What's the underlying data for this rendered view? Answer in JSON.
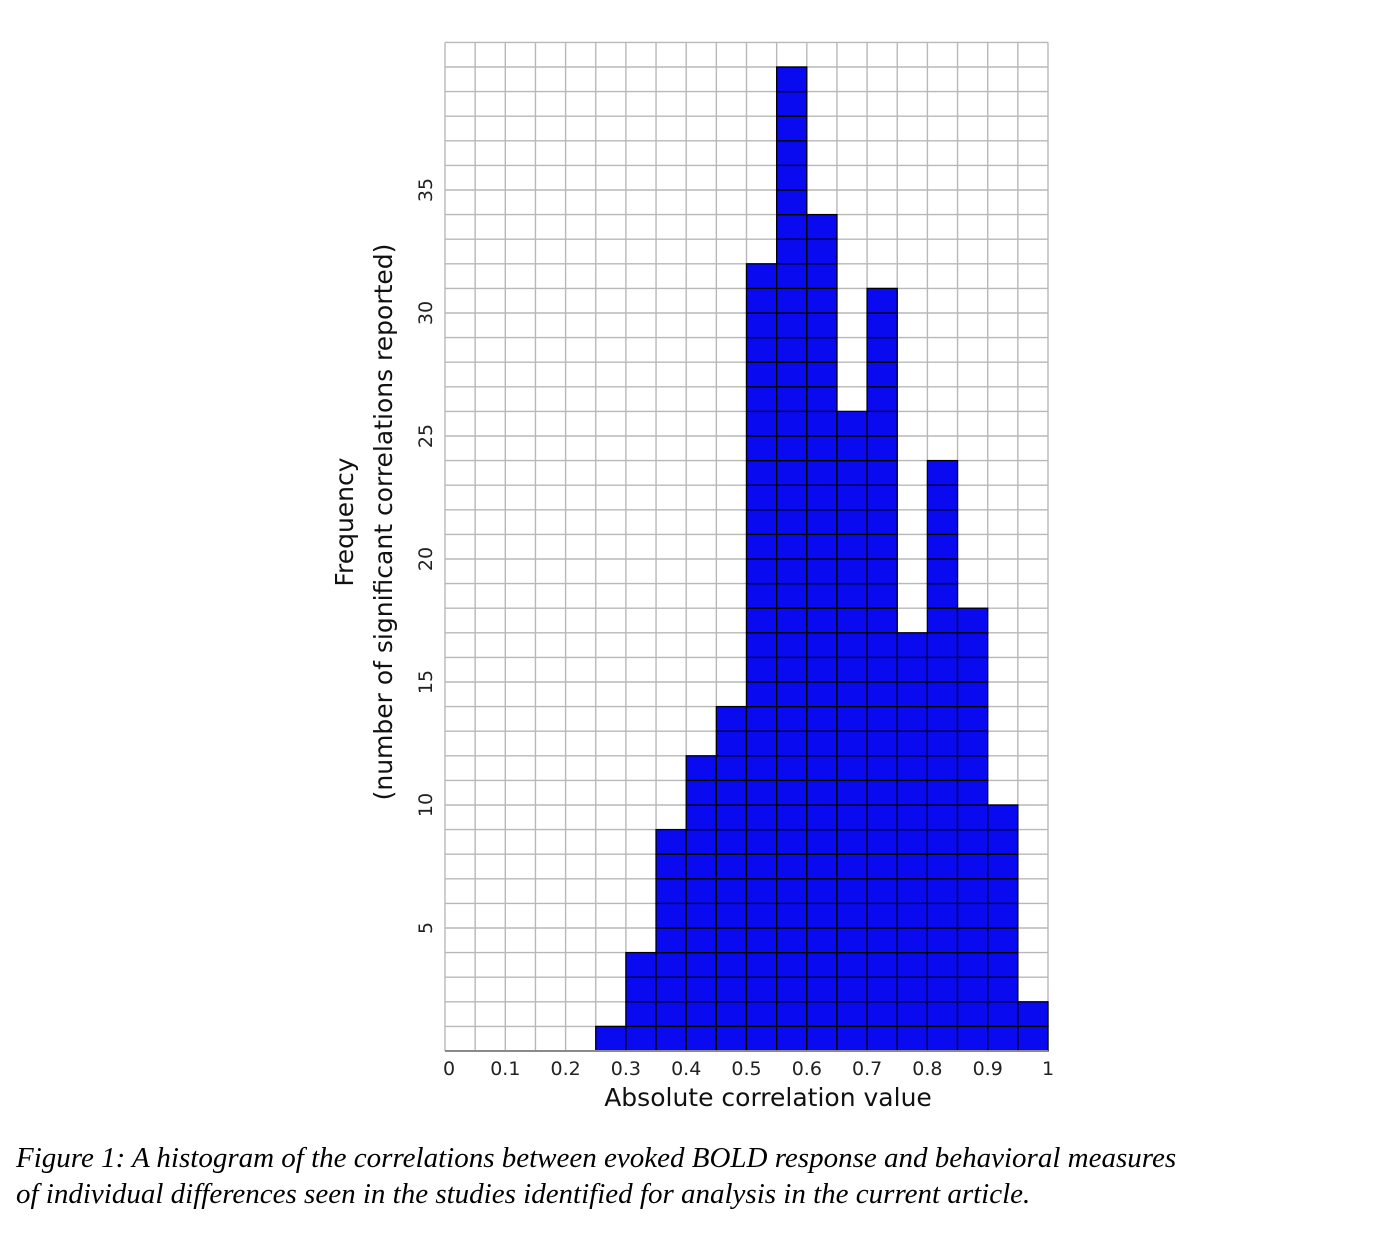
{
  "chart_data": {
    "type": "bar",
    "title": "",
    "xlabel": "Absolute correlation value",
    "ylabel_line1": "Frequency",
    "ylabel_line2": "(number of significant correlations reported)",
    "bin_width": 0.05,
    "categories": [
      "0.25-0.30",
      "0.30-0.35",
      "0.35-0.40",
      "0.40-0.45",
      "0.45-0.50",
      "0.50-0.55",
      "0.55-0.60",
      "0.60-0.65",
      "0.65-0.70",
      "0.70-0.75",
      "0.75-0.80",
      "0.80-0.85",
      "0.85-0.90",
      "0.90-0.95",
      "0.95-1.00"
    ],
    "bin_starts": [
      0.25,
      0.3,
      0.35,
      0.4,
      0.45,
      0.5,
      0.55,
      0.6,
      0.65,
      0.7,
      0.75,
      0.8,
      0.85,
      0.9,
      0.95
    ],
    "values": [
      1,
      4,
      9,
      12,
      14,
      32,
      40,
      34,
      26,
      31,
      17,
      24,
      18,
      10,
      2
    ],
    "xlim": [
      0,
      1
    ],
    "ylim": [
      0,
      41
    ],
    "x_ticks": [
      "0",
      "0.1",
      "0.2",
      "0.3",
      "0.4",
      "0.5",
      "0.6",
      "0.7",
      "0.8",
      "0.9",
      "1"
    ],
    "y_ticks": [
      5,
      10,
      15,
      20,
      25,
      30,
      35
    ],
    "grid": true,
    "grid_note": "grid lines every 0.05 on x and every 1 unit on y",
    "bar_color": "#0a0af0",
    "bar_cell_border": "#000000",
    "grid_color": "#b8b8b8",
    "legend": null
  },
  "caption": {
    "line1": "Figure 1: A histogram of the correlations between evoked BOLD response and behavioral measures",
    "line2": "of individual differences seen in the studies identified for analysis in the current article."
  }
}
